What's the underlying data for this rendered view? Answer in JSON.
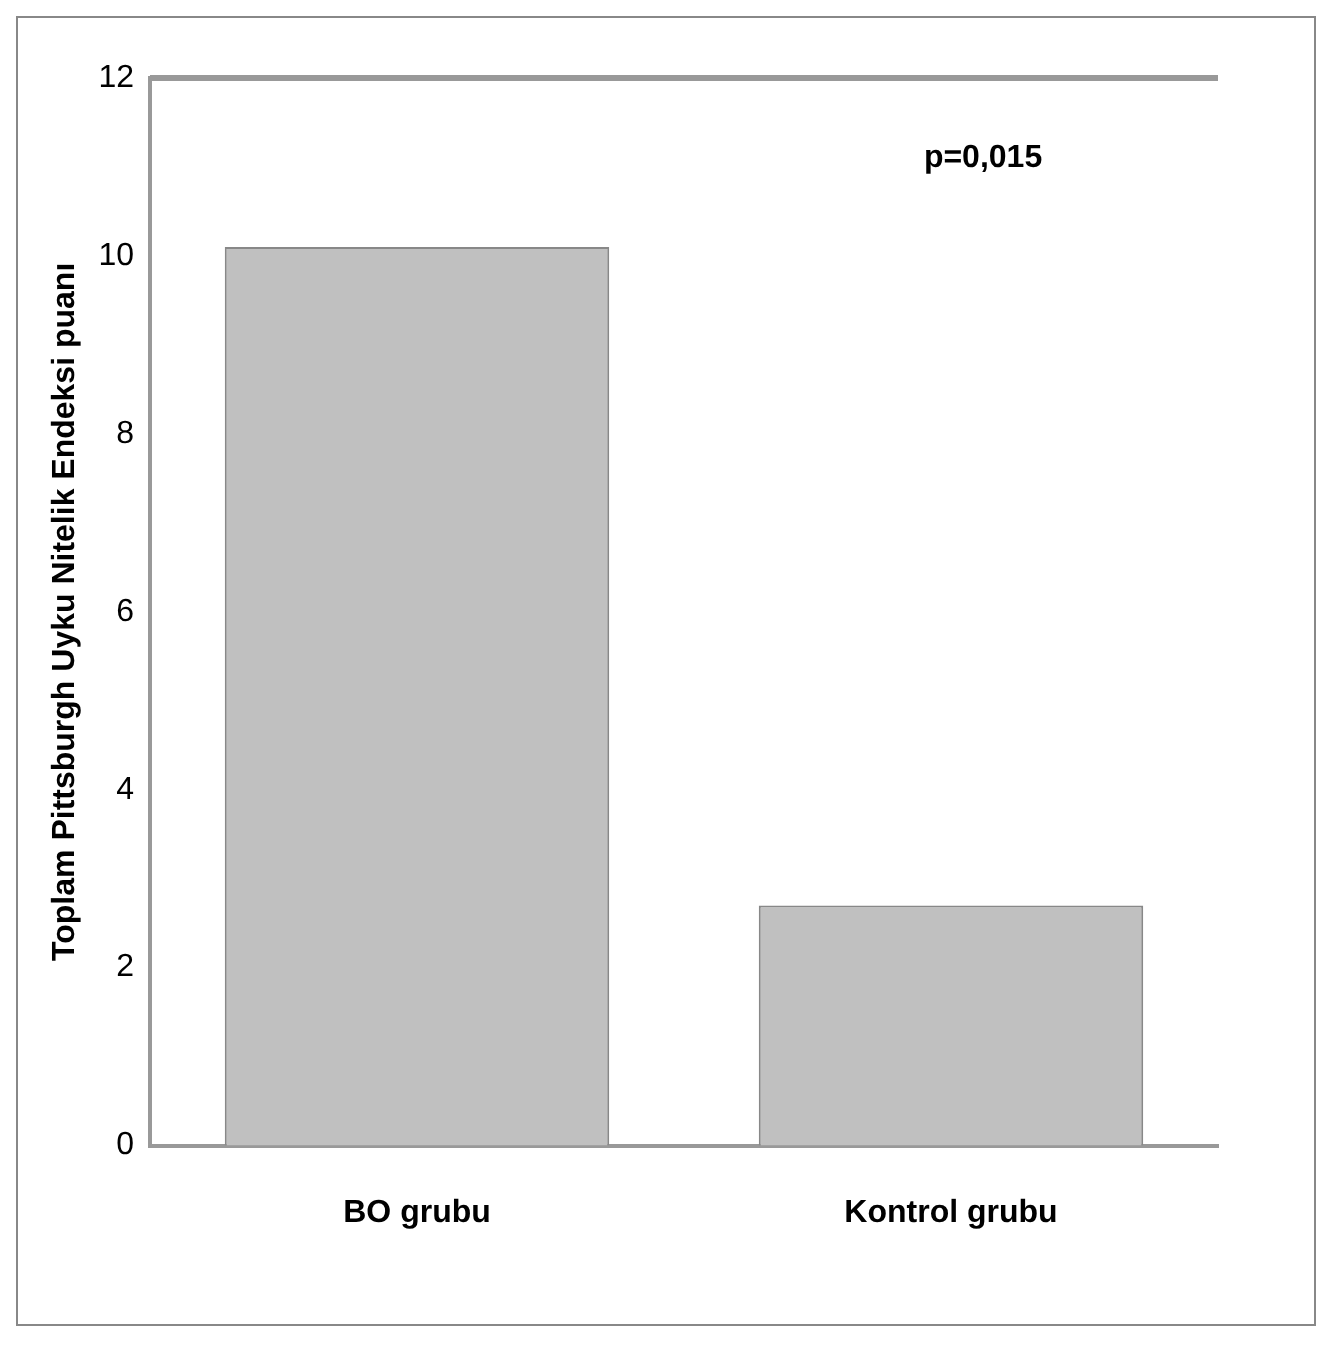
{
  "chart_data": {
    "type": "bar",
    "ylabel": "Toplam Pittsburgh Uyku Nitelik Endeksi puanı",
    "categories": [
      "BO grubu",
      "Kontrol grubu"
    ],
    "values": [
      10.1,
      2.7
    ],
    "color": "#c0c0c0",
    "ylim": [
      0,
      12
    ],
    "yticks": [
      0,
      2,
      4,
      6,
      8,
      10,
      12
    ],
    "grid": false,
    "annotations": [
      "p=0,015"
    ]
  }
}
